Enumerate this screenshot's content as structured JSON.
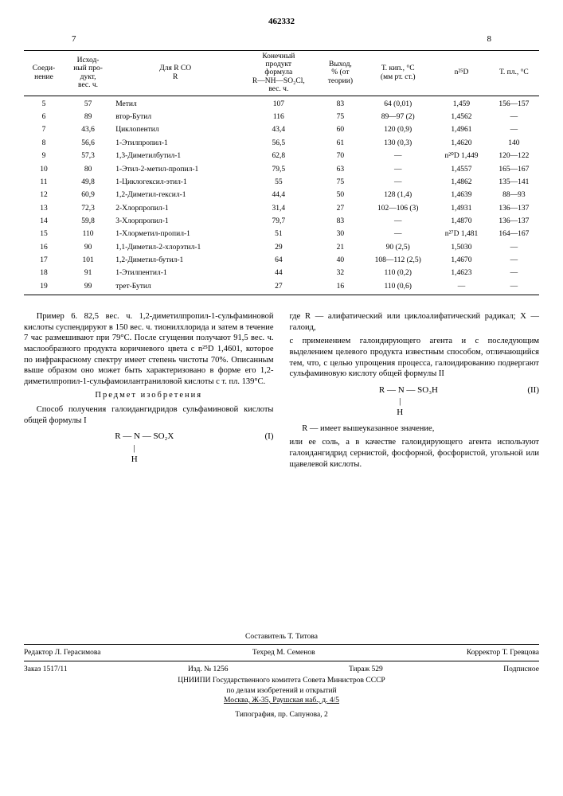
{
  "doc_number": "462332",
  "page_left": "7",
  "page_right": "8",
  "table": {
    "headers": [
      "Соеди-\nнение",
      "Исход-\nный про-\nдукт,\nвес. ч.",
      "Для R CO\nR",
      "Конечный\nпродукт\nформула\nR—NH—SO₂Cl,\nвес. ч.",
      "Выход,\n% (от\nтеории)",
      "Т. кип., °С\n(мм рт. ст.)",
      "n²⁵D",
      "Т. пл., °С"
    ],
    "rows": [
      [
        "5",
        "57",
        "Метил",
        "107",
        "83",
        "64 (0,01)",
        "1,459",
        "156—157"
      ],
      [
        "6",
        "89",
        "втор-Бутил",
        "116",
        "75",
        "89—97 (2)",
        "1,4562",
        "—"
      ],
      [
        "7",
        "43,6",
        "Циклопентил",
        "43,4",
        "60",
        "120 (0,9)",
        "1,4961",
        "—"
      ],
      [
        "8",
        "56,6",
        "1-Этилпропил-1",
        "56,5",
        "61",
        "130 (0,3)",
        "1,4620",
        "140"
      ],
      [
        "9",
        "57,3",
        "1,3-Диметилбутил-1",
        "62,8",
        "70",
        "—",
        "n²⁰D 1,449",
        "120—122"
      ],
      [
        "10",
        "80",
        "1-Этил-2-метил-пропил-1",
        "79,5",
        "63",
        "—",
        "1,4557",
        "165—167"
      ],
      [
        "11",
        "49,8",
        "1-Циклогексил-этил-1",
        "55",
        "75",
        "—",
        "1,4862",
        "135—141"
      ],
      [
        "12",
        "60,9",
        "1,2-Диметил-гексил-1",
        "44,4",
        "50",
        "128 (1,4)",
        "1,4639",
        "88—93"
      ],
      [
        "13",
        "72,3",
        "2-Хлорпропил-1",
        "31,4",
        "27",
        "102—106 (3)",
        "1,4931",
        "136—137"
      ],
      [
        "14",
        "59,8",
        "3-Хлорпропил-1",
        "79,7",
        "83",
        "—",
        "1,4870",
        "136—137"
      ],
      [
        "15",
        "110",
        "1-Хлорметил-пропил-1",
        "51",
        "30",
        "—",
        "n²⁷D 1,481",
        "164—167"
      ],
      [
        "16",
        "90",
        "1,1-Диметил-2-хлорэтил-1",
        "29",
        "21",
        "90 (2,5)",
        "1,5030",
        "—"
      ],
      [
        "17",
        "101",
        "1,2-Диметил-бутил-1",
        "64",
        "40",
        "108—112 (2,5)",
        "1,4670",
        "—"
      ],
      [
        "18",
        "91",
        "1-Этилпентил-1",
        "44",
        "32",
        "110 (0,2)",
        "1,4623",
        "—"
      ],
      [
        "19",
        "99",
        "трет-Бутил",
        "27",
        "16",
        "110 (0,6)",
        "—",
        "—"
      ]
    ]
  },
  "left_col": {
    "p1": "Пример 6. 82,5 вес. ч. 1,2-диметилпропил-1-сульфаминовой кислоты суспендируют в 150 вес. ч. тионилхлорида и затем в течение 7 час размешивают при 79°С. После сгущения получают 91,5 вес. ч. маслообразного продукта коричневого цвета с n²⁵D 1,4601, которое по инфракрасному спектру имеет степень чистоты 70%. Описанным выше образом оно может быть характеризовано в форме его 1,2-диметилпропил-1-сульфамоилантраниловой кислоты с т. пл. 139°С.",
    "subject_head": "Предмет изобретения",
    "p2": "Способ получения галоидангидридов сульфаминовой кислоты общей формулы I",
    "formula1_main": "R — N — SO₂X",
    "formula1_sub": "H",
    "formula1_num": "(I)"
  },
  "right_col": {
    "p1": "где R — алифатический или циклоалифатический радикал; Х — галоид,",
    "p2": "с применением галоидирующего агента и с последующим выделением целевого продукта известным способом, отличающийся тем, что, с целью упрощения процесса, галоидированию подвергают сульфаминовую кислоту общей формулы II",
    "formula2_main": "R — N — SO₃H",
    "formula2_sub": "H",
    "formula2_num": "(II)",
    "p3": "R — имеет вышеуказанное значение,",
    "p4": "или ее соль, а в качестве галоидирующего агента используют галоидангидрид сернистой, фосфорной, фосфористой, угольной или щавелевой кислоты."
  },
  "footer": {
    "composer": "Составитель Т. Титова",
    "editor": "Редактор Л. Герасимова",
    "tech": "Техред М. Семенов",
    "corrector": "Корректор Т. Гревцова",
    "order": "Заказ 1517/11",
    "izd": "Изд. № 1256",
    "tirage": "Тираж 529",
    "sign": "Подписное",
    "org1": "ЦНИИПИ Государственного комитета Совета Министров СССР",
    "org2": "по делам изобретений и открытий",
    "addr": "Москва, Ж-35, Раушская наб., д. 4/5",
    "typ": "Типография, пр. Сапунова, 2"
  }
}
